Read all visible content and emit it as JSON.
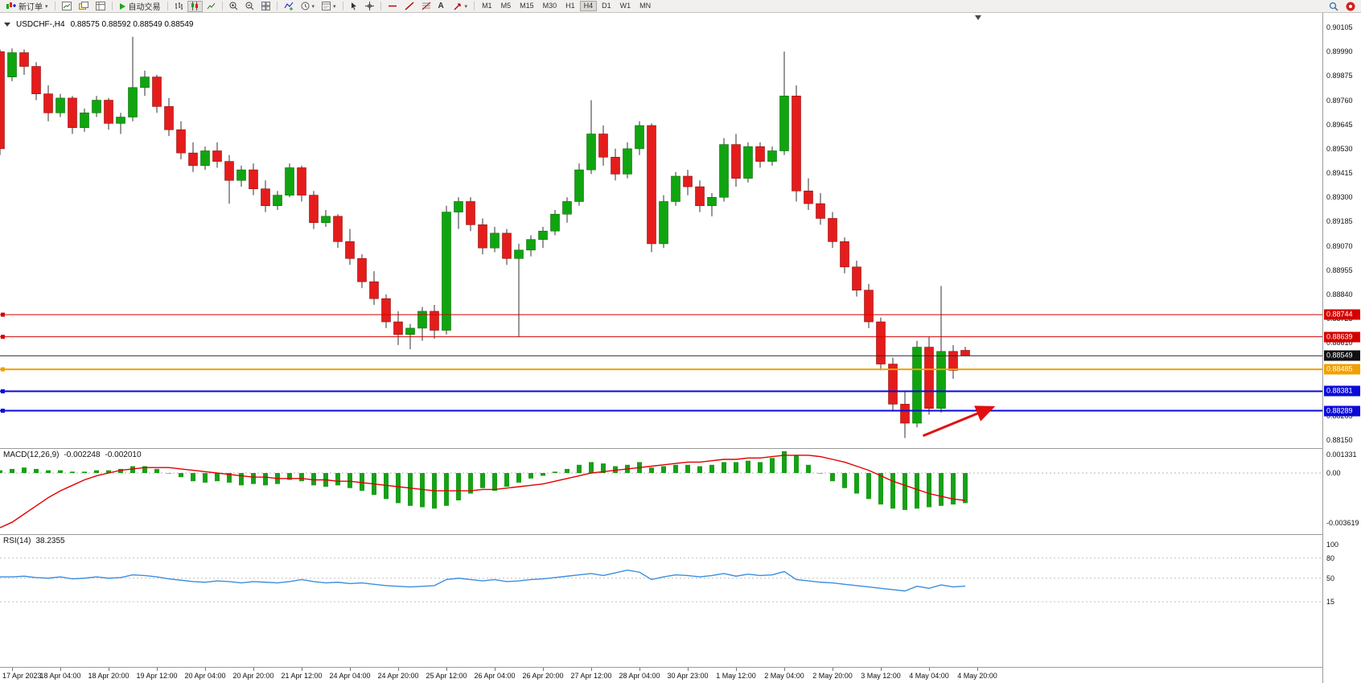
{
  "toolbar": {
    "new_order_label": "新订单",
    "auto_trading_label": "自动交易",
    "timeframes": [
      "M1",
      "M5",
      "M15",
      "M30",
      "H1",
      "H4",
      "D1",
      "W1",
      "MN"
    ],
    "active_timeframe": "H4"
  },
  "symbol_info": {
    "title": "USDCHF-,H4",
    "ohlc": "0.88575 0.88592 0.88549 0.88549"
  },
  "macd_panel": {
    "name": "MACD(12,26,9)",
    "value": "-0.002248",
    "signal_value": "-0.002010",
    "axis_labels": [
      {
        "v": 0.001331,
        "label": "0.001331"
      },
      {
        "v": 0,
        "label": "0.00"
      },
      {
        "v": -0.003619,
        "label": "-0.003619"
      }
    ]
  },
  "rsi_panel": {
    "name": "RSI(14)",
    "value": "38.2355",
    "axis_labels": [
      {
        "v": 100,
        "label": "100"
      },
      {
        "v": 80,
        "label": "80"
      },
      {
        "v": 50,
        "label": "50"
      },
      {
        "v": 15,
        "label": "15"
      }
    ],
    "levels": [
      80,
      50,
      15
    ]
  },
  "chart_data": {
    "type": "candlestick",
    "symbol": "USDCHF",
    "timeframe": "H4",
    "colors": {
      "bull": "#10a510",
      "bear": "#e51c1c",
      "wick": "#303030",
      "grid": "#c0c0c0"
    },
    "price_axis": {
      "max": 0.90105,
      "min": 0.8815,
      "step": 0.00115,
      "labels": [
        "0.90105",
        "0.89990",
        "0.89875",
        "0.89760",
        "0.89645",
        "0.89530",
        "0.89415",
        "0.89300",
        "0.89185",
        "0.89070",
        "0.88955",
        "0.88840",
        "0.88725",
        "0.88610",
        "0.88495",
        "0.88380",
        "0.88265",
        "0.88150"
      ]
    },
    "time_labels": [
      "17 Apr 2023",
      "18 Apr 04:00",
      "18 Apr 20:00",
      "19 Apr 12:00",
      "20 Apr 04:00",
      "20 Apr 20:00",
      "21 Apr 12:00",
      "24 Apr 04:00",
      "24 Apr 20:00",
      "25 Apr 12:00",
      "26 Apr 04:00",
      "26 Apr 20:00",
      "27 Apr 12:00",
      "28 Apr 04:00",
      "30 Apr 23:00",
      "1 May 12:00",
      "2 May 04:00",
      "2 May 20:00",
      "3 May 12:00",
      "4 May 04:00",
      "4 May 20:00"
    ],
    "levels": [
      {
        "price": 0.88744,
        "label": "0.88744",
        "color": "#d40000",
        "width": 1
      },
      {
        "price": 0.88639,
        "label": "0.88639",
        "color": "#d40000",
        "width": 1
      },
      {
        "price": 0.88549,
        "label": "0.88549",
        "color": "#2a2a2a",
        "width": 1,
        "role": "current-price-line"
      },
      {
        "price": 0.88485,
        "label": "0.88485",
        "color": "#f0a000",
        "width": 2
      },
      {
        "price": 0.88381,
        "label": "0.88381",
        "color": "#0a0ad8",
        "width": 2
      },
      {
        "price": 0.88289,
        "label": "0.88289",
        "color": "#0a0ad8",
        "width": 2
      }
    ],
    "trend_arrow": {
      "from_index": 76.5,
      "from_price": 0.8817,
      "to_index": 82.3,
      "to_price": 0.88306,
      "color": "#e01010"
    },
    "candles": [
      [
        0.8999,
        0.9,
        0.895,
        0.8953
      ],
      [
        0.8987,
        0.90005,
        0.8985,
        0.89985
      ],
      [
        0.89985,
        0.9,
        0.8988,
        0.8992
      ],
      [
        0.8992,
        0.8994,
        0.8976,
        0.8979
      ],
      [
        0.8979,
        0.8983,
        0.8966,
        0.897
      ],
      [
        0.897,
        0.8979,
        0.8968,
        0.8977
      ],
      [
        0.8977,
        0.8978,
        0.896,
        0.8963
      ],
      [
        0.8963,
        0.8972,
        0.8961,
        0.897
      ],
      [
        0.897,
        0.8978,
        0.8968,
        0.8976
      ],
      [
        0.8976,
        0.8977,
        0.8962,
        0.8965
      ],
      [
        0.8965,
        0.897,
        0.896,
        0.8968
      ],
      [
        0.8968,
        0.9006,
        0.8966,
        0.8982
      ],
      [
        0.8982,
        0.899,
        0.8978,
        0.8987
      ],
      [
        0.8987,
        0.8988,
        0.897,
        0.8973
      ],
      [
        0.8973,
        0.8977,
        0.8959,
        0.8962
      ],
      [
        0.8962,
        0.8966,
        0.8948,
        0.8951
      ],
      [
        0.8951,
        0.8956,
        0.8942,
        0.8945
      ],
      [
        0.8945,
        0.8954,
        0.8943,
        0.8952
      ],
      [
        0.8952,
        0.8956,
        0.8944,
        0.8947
      ],
      [
        0.8947,
        0.895,
        0.8927,
        0.8938
      ],
      [
        0.8938,
        0.8945,
        0.8935,
        0.8943
      ],
      [
        0.8943,
        0.8946,
        0.8931,
        0.8934
      ],
      [
        0.8934,
        0.8938,
        0.8923,
        0.8926
      ],
      [
        0.8926,
        0.8933,
        0.8924,
        0.8931
      ],
      [
        0.8931,
        0.8946,
        0.893,
        0.8944
      ],
      [
        0.8944,
        0.8945,
        0.8928,
        0.8931
      ],
      [
        0.8931,
        0.8933,
        0.8915,
        0.8918
      ],
      [
        0.8918,
        0.8924,
        0.8916,
        0.8921
      ],
      [
        0.8921,
        0.8922,
        0.8906,
        0.8909
      ],
      [
        0.8909,
        0.8915,
        0.8898,
        0.8901
      ],
      [
        0.8901,
        0.8903,
        0.8887,
        0.889
      ],
      [
        0.889,
        0.8895,
        0.8879,
        0.8882
      ],
      [
        0.8882,
        0.8884,
        0.8868,
        0.8871
      ],
      [
        0.8871,
        0.8876,
        0.886,
        0.8865
      ],
      [
        0.8865,
        0.887,
        0.8858,
        0.8868
      ],
      [
        0.8868,
        0.8878,
        0.8862,
        0.8876
      ],
      [
        0.8876,
        0.8879,
        0.8863,
        0.8867
      ],
      [
        0.8867,
        0.8926,
        0.8865,
        0.8923
      ],
      [
        0.8923,
        0.893,
        0.8915,
        0.8928
      ],
      [
        0.8928,
        0.893,
        0.8914,
        0.8917
      ],
      [
        0.8917,
        0.892,
        0.8903,
        0.8906
      ],
      [
        0.8906,
        0.8916,
        0.8904,
        0.8913
      ],
      [
        0.8913,
        0.8915,
        0.8898,
        0.8901
      ],
      [
        0.8901,
        0.8908,
        0.8864,
        0.8905
      ],
      [
        0.8905,
        0.8912,
        0.8902,
        0.891
      ],
      [
        0.891,
        0.8916,
        0.8906,
        0.8914
      ],
      [
        0.8914,
        0.8924,
        0.8912,
        0.8922
      ],
      [
        0.8922,
        0.893,
        0.8918,
        0.8928
      ],
      [
        0.8928,
        0.8946,
        0.8926,
        0.8943
      ],
      [
        0.8943,
        0.8976,
        0.8941,
        0.896
      ],
      [
        0.896,
        0.8964,
        0.8945,
        0.8949
      ],
      [
        0.8949,
        0.8953,
        0.8938,
        0.8941
      ],
      [
        0.8941,
        0.8956,
        0.8939,
        0.8953
      ],
      [
        0.8953,
        0.8966,
        0.895,
        0.8964
      ],
      [
        0.8964,
        0.8965,
        0.8904,
        0.8908
      ],
      [
        0.8908,
        0.8931,
        0.8906,
        0.8928
      ],
      [
        0.8928,
        0.8942,
        0.8926,
        0.894
      ],
      [
        0.894,
        0.8943,
        0.8931,
        0.8935
      ],
      [
        0.8935,
        0.8938,
        0.8923,
        0.8926
      ],
      [
        0.8926,
        0.8932,
        0.8921,
        0.893
      ],
      [
        0.893,
        0.8958,
        0.8928,
        0.8955
      ],
      [
        0.8955,
        0.896,
        0.8935,
        0.8939
      ],
      [
        0.8939,
        0.8956,
        0.8937,
        0.8954
      ],
      [
        0.8954,
        0.8956,
        0.8944,
        0.8947
      ],
      [
        0.8947,
        0.8954,
        0.8945,
        0.8952
      ],
      [
        0.8952,
        0.8999,
        0.895,
        0.8978
      ],
      [
        0.8978,
        0.8983,
        0.8928,
        0.8933
      ],
      [
        0.8933,
        0.8939,
        0.8924,
        0.8927
      ],
      [
        0.8927,
        0.8932,
        0.8917,
        0.892
      ],
      [
        0.892,
        0.8923,
        0.8906,
        0.8909
      ],
      [
        0.8909,
        0.8911,
        0.8894,
        0.8897
      ],
      [
        0.8897,
        0.89,
        0.8883,
        0.8886
      ],
      [
        0.8886,
        0.8889,
        0.8868,
        0.8871
      ],
      [
        0.8871,
        0.8873,
        0.8848,
        0.8851
      ],
      [
        0.8851,
        0.8854,
        0.8829,
        0.8832
      ],
      [
        0.8832,
        0.8838,
        0.8816,
        0.8823
      ],
      [
        0.8823,
        0.8862,
        0.8821,
        0.8859
      ],
      [
        0.8859,
        0.8864,
        0.8827,
        0.883
      ],
      [
        0.883,
        0.8888,
        0.8828,
        0.8857
      ],
      [
        0.8857,
        0.886,
        0.8844,
        0.8848
      ],
      [
        0.88575,
        0.88592,
        0.88549,
        0.88549
      ]
    ],
    "macd": {
      "hist_color": "#18a018",
      "signal_color": "#e00000",
      "histogram": [
        0.0002,
        0.0003,
        0.0004,
        0.0003,
        0.0002,
        0.0002,
        0.0001,
        0.0001,
        0.0002,
        0.0002,
        0.0003,
        0.0005,
        0.0005,
        0.0003,
        0.0,
        -0.0003,
        -0.0006,
        -0.0007,
        -0.0006,
        -0.0007,
        -0.0009,
        -0.0008,
        -0.0009,
        -0.0008,
        -0.0005,
        -0.0006,
        -0.0009,
        -0.001,
        -0.0009,
        -0.0011,
        -0.0013,
        -0.0016,
        -0.0019,
        -0.0022,
        -0.0024,
        -0.0025,
        -0.0026,
        -0.0024,
        -0.002,
        -0.0015,
        -0.0011,
        -0.0013,
        -0.001,
        -0.0007,
        -0.0004,
        -0.0002,
        0.0001,
        0.0003,
        0.0006,
        0.0008,
        0.0007,
        0.0005,
        0.0006,
        0.0008,
        0.0004,
        0.0005,
        0.0006,
        0.0006,
        0.0005,
        0.0006,
        0.0008,
        0.0008,
        0.0009,
        0.0008,
        0.0011,
        0.0016,
        0.0013,
        0.0006,
        0.0,
        -0.0006,
        -0.0011,
        -0.0015,
        -0.0019,
        -0.0023,
        -0.0026,
        -0.0027,
        -0.0026,
        -0.0025,
        -0.0024,
        -0.0023,
        -0.0022
      ],
      "signal": [
        -0.004,
        -0.0036,
        -0.003,
        -0.0024,
        -0.0018,
        -0.0013,
        -0.0009,
        -0.0005,
        -0.0002,
        0.0,
        0.0002,
        0.0003,
        0.0004,
        0.0004,
        0.0004,
        0.0003,
        0.0002,
        0.0001,
        0.0,
        -0.0001,
        -0.0002,
        -0.0003,
        -0.0003,
        -0.0004,
        -0.0004,
        -0.0004,
        -0.0005,
        -0.0005,
        -0.0006,
        -0.0006,
        -0.0007,
        -0.0008,
        -0.0009,
        -0.001,
        -0.0011,
        -0.0012,
        -0.0013,
        -0.0013,
        -0.0013,
        -0.0013,
        -0.0012,
        -0.0012,
        -0.0011,
        -0.001,
        -0.0009,
        -0.0008,
        -0.0006,
        -0.0004,
        -0.0002,
        0.0,
        0.0001,
        0.0002,
        0.0003,
        0.0004,
        0.0005,
        0.0006,
        0.0007,
        0.0008,
        0.0008,
        0.0009,
        0.001,
        0.001,
        0.0011,
        0.0011,
        0.0012,
        0.0013,
        0.0013,
        0.0013,
        0.0012,
        0.001,
        0.0008,
        0.0005,
        0.0002,
        -0.0002,
        -0.0006,
        -0.0009,
        -0.0012,
        -0.0015,
        -0.0017,
        -0.0019,
        -0.002
      ]
    },
    "rsi": {
      "color": "#3b8ee0",
      "values": [
        52,
        52,
        53,
        51,
        50,
        52,
        49,
        50,
        52,
        50,
        51,
        55,
        54,
        52,
        49,
        47,
        45,
        44,
        46,
        45,
        43,
        45,
        44,
        43,
        45,
        48,
        45,
        43,
        44,
        42,
        43,
        41,
        39,
        38,
        37,
        38,
        39,
        48,
        50,
        48,
        46,
        48,
        45,
        46,
        48,
        49,
        51,
        53,
        55,
        57,
        54,
        58,
        62,
        59,
        48,
        52,
        55,
        54,
        52,
        54,
        57,
        53,
        56,
        54,
        55,
        60,
        48,
        46,
        44,
        43,
        41,
        39,
        37,
        35,
        33,
        31,
        38,
        35,
        40,
        37,
        38.2
      ]
    }
  }
}
